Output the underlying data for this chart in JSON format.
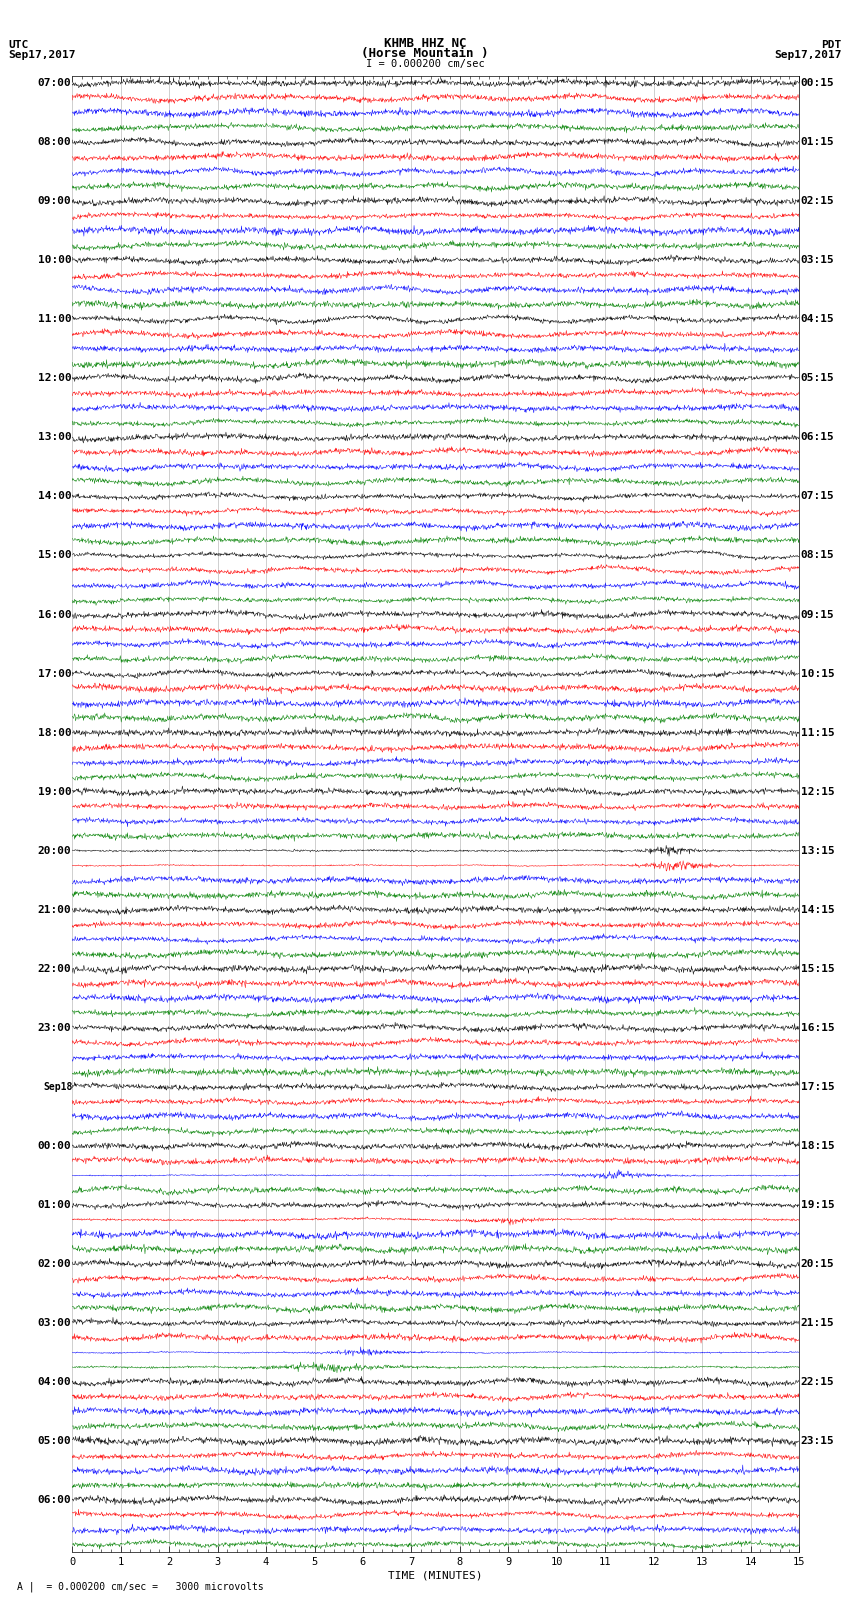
{
  "title_line1": "KHMB HHZ NC",
  "title_line2": "(Horse Mountain )",
  "title_line3": "I = 0.000200 cm/sec",
  "left_header_line1": "UTC",
  "left_header_line2": "Sep17,2017",
  "right_header_line1": "PDT",
  "right_header_line2": "Sep17,2017",
  "xlabel": "TIME (MINUTES)",
  "footer_text": "A |  = 0.000200 cm/sec =   3000 microvolts",
  "utc_labels": [
    "07:00",
    "08:00",
    "09:00",
    "10:00",
    "11:00",
    "12:00",
    "13:00",
    "14:00",
    "15:00",
    "16:00",
    "17:00",
    "18:00",
    "19:00",
    "20:00",
    "21:00",
    "22:00",
    "23:00",
    "Sep18",
    "00:00",
    "01:00",
    "02:00",
    "03:00",
    "04:00",
    "05:00",
    "06:00"
  ],
  "pdt_labels": [
    "00:15",
    "01:15",
    "02:15",
    "03:15",
    "04:15",
    "05:15",
    "06:15",
    "07:15",
    "08:15",
    "09:15",
    "10:15",
    "11:15",
    "12:15",
    "13:15",
    "14:15",
    "15:15",
    "16:15",
    "17:15",
    "18:15",
    "19:15",
    "20:15",
    "21:15",
    "22:15",
    "23:15",
    ""
  ],
  "colors": [
    "black",
    "red",
    "blue",
    "green"
  ],
  "n_groups": 25,
  "n_traces_per_group": 4,
  "time_minutes": 15,
  "samples_per_trace": 1500,
  "background_color": "white",
  "noise_seed": 42
}
